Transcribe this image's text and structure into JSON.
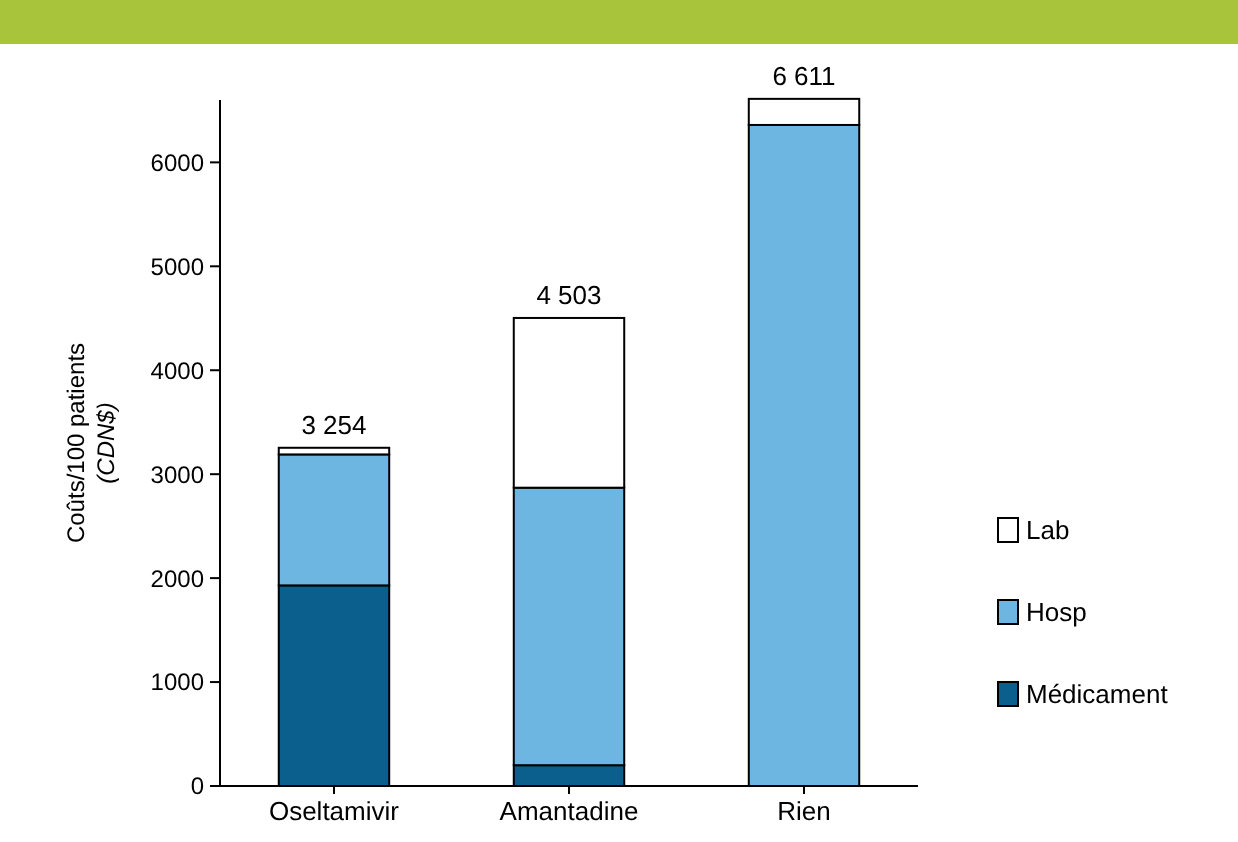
{
  "chart_data": {
    "type": "bar",
    "stacked": true,
    "ylabel": "Coûts/100 patients\n(CDN$)",
    "categories": [
      "Oseltamivir",
      "Amantadine",
      "Rien"
    ],
    "series": [
      {
        "name": "Médicament",
        "color": "#0b5f8c",
        "values": [
          1930,
          200,
          0
        ]
      },
      {
        "name": "Hosp",
        "color": "#6db6e2",
        "values": [
          1260,
          2670,
          6360
        ]
      },
      {
        "name": "Lab",
        "color": "#ffffff",
        "values": [
          64,
          1633,
          251
        ]
      }
    ],
    "totals": [
      "3 254",
      "4 503",
      "6 611"
    ],
    "ylim": [
      0,
      6600
    ],
    "yticks": [
      0,
      1000,
      2000,
      3000,
      4000,
      5000,
      6000
    ],
    "grid": false,
    "legend": "right"
  }
}
